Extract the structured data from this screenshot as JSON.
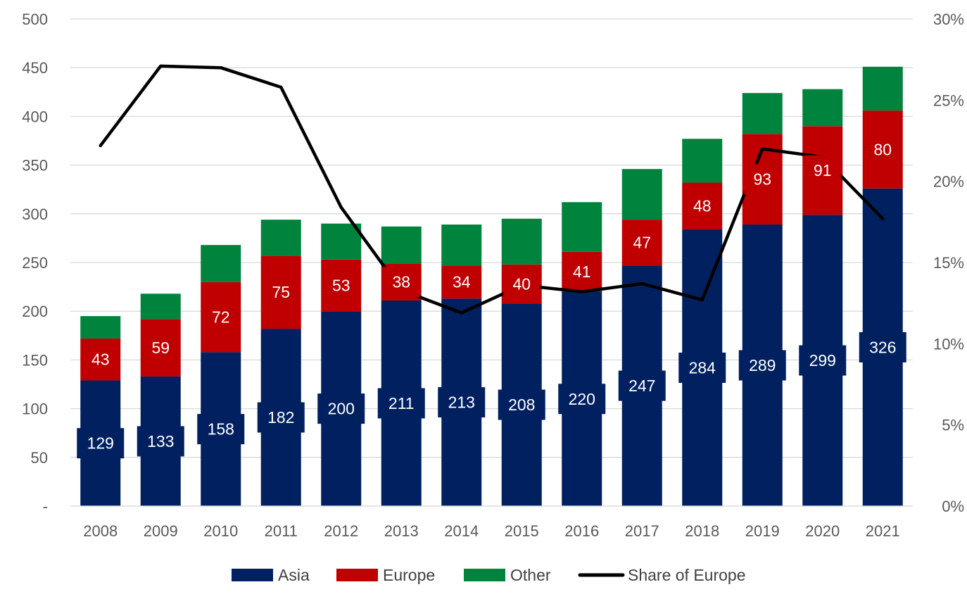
{
  "chart_data": {
    "type": "bar",
    "stacked": true,
    "categories": [
      "2008",
      "2009",
      "2010",
      "2011",
      "2012",
      "2013",
      "2014",
      "2015",
      "2016",
      "2017",
      "2018",
      "2019",
      "2020",
      "2021"
    ],
    "series": [
      {
        "name": "Asia",
        "kind": "bar",
        "color": "#002060",
        "axis": "left",
        "values": [
          129,
          133,
          158,
          182,
          200,
          211,
          213,
          208,
          220,
          247,
          284,
          289,
          299,
          326
        ],
        "labels_shown": true
      },
      {
        "name": "Europe",
        "kind": "bar",
        "color": "#c00000",
        "axis": "left",
        "values": [
          43,
          59,
          72,
          75,
          53,
          38,
          34,
          40,
          41,
          47,
          48,
          93,
          91,
          80
        ],
        "labels_shown": true
      },
      {
        "name": "Other",
        "kind": "bar",
        "color": "#00843d",
        "axis": "left",
        "values": [
          23,
          26,
          38,
          37,
          37,
          38,
          42,
          47,
          51,
          52,
          45,
          42,
          38,
          45
        ],
        "labels_shown": false
      },
      {
        "name": "Share of Europe",
        "kind": "line",
        "color": "#000000",
        "axis": "right",
        "values": [
          0.222,
          0.271,
          0.27,
          0.258,
          0.184,
          0.133,
          0.119,
          0.136,
          0.132,
          0.137,
          0.127,
          0.22,
          0.215,
          0.177
        ]
      }
    ],
    "y_left": {
      "min": 0,
      "max": 500,
      "ticks": [
        "-",
        "50",
        "100",
        "150",
        "200",
        "250",
        "300",
        "350",
        "400",
        "450",
        "500"
      ]
    },
    "y_right": {
      "min": 0,
      "max": 0.3,
      "ticks": [
        "0%",
        "5%",
        "10%",
        "15%",
        "20%",
        "25%",
        "30%"
      ]
    },
    "grid": true,
    "legend": {
      "position": "bottom",
      "entries": [
        "Asia",
        "Europe",
        "Other",
        "Share of Europe"
      ]
    }
  }
}
